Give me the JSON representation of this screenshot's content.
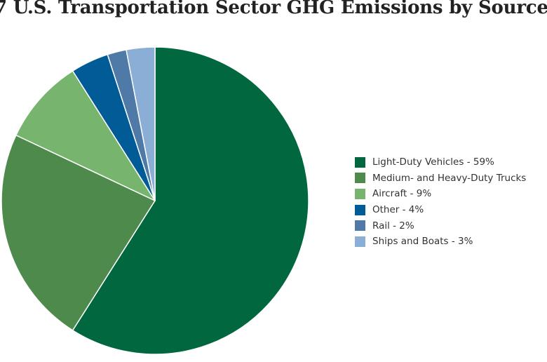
{
  "chart_data": {
    "type": "pie",
    "title": "7 U.S. Transportation Sector GHG Emissions by Source",
    "slices": [
      {
        "label": "Light-Duty Vehicles",
        "legend": "Light-Duty Vehicles - 59%",
        "value": 59,
        "color": "#00673f"
      },
      {
        "label": "Medium- and Heavy-Duty Trucks",
        "legend": "Medium- and Heavy-Duty Trucks",
        "value": 23,
        "color": "#4e8a4b"
      },
      {
        "label": "Aircraft",
        "legend": "Aircraft - 9%",
        "value": 9,
        "color": "#77b56e"
      },
      {
        "label": "Other",
        "legend": "Other - 4%",
        "value": 4,
        "color": "#005b96"
      },
      {
        "label": "Rail",
        "legend": "Rail - 2%",
        "value": 2,
        "color": "#4f79a6"
      },
      {
        "label": "Ships and Boats",
        "legend": "Ships and Boats - 3%",
        "value": 3,
        "color": "#8aaed6"
      }
    ],
    "start_angle": "12 o'clock",
    "direction": "clockwise",
    "legend_position": "right"
  }
}
